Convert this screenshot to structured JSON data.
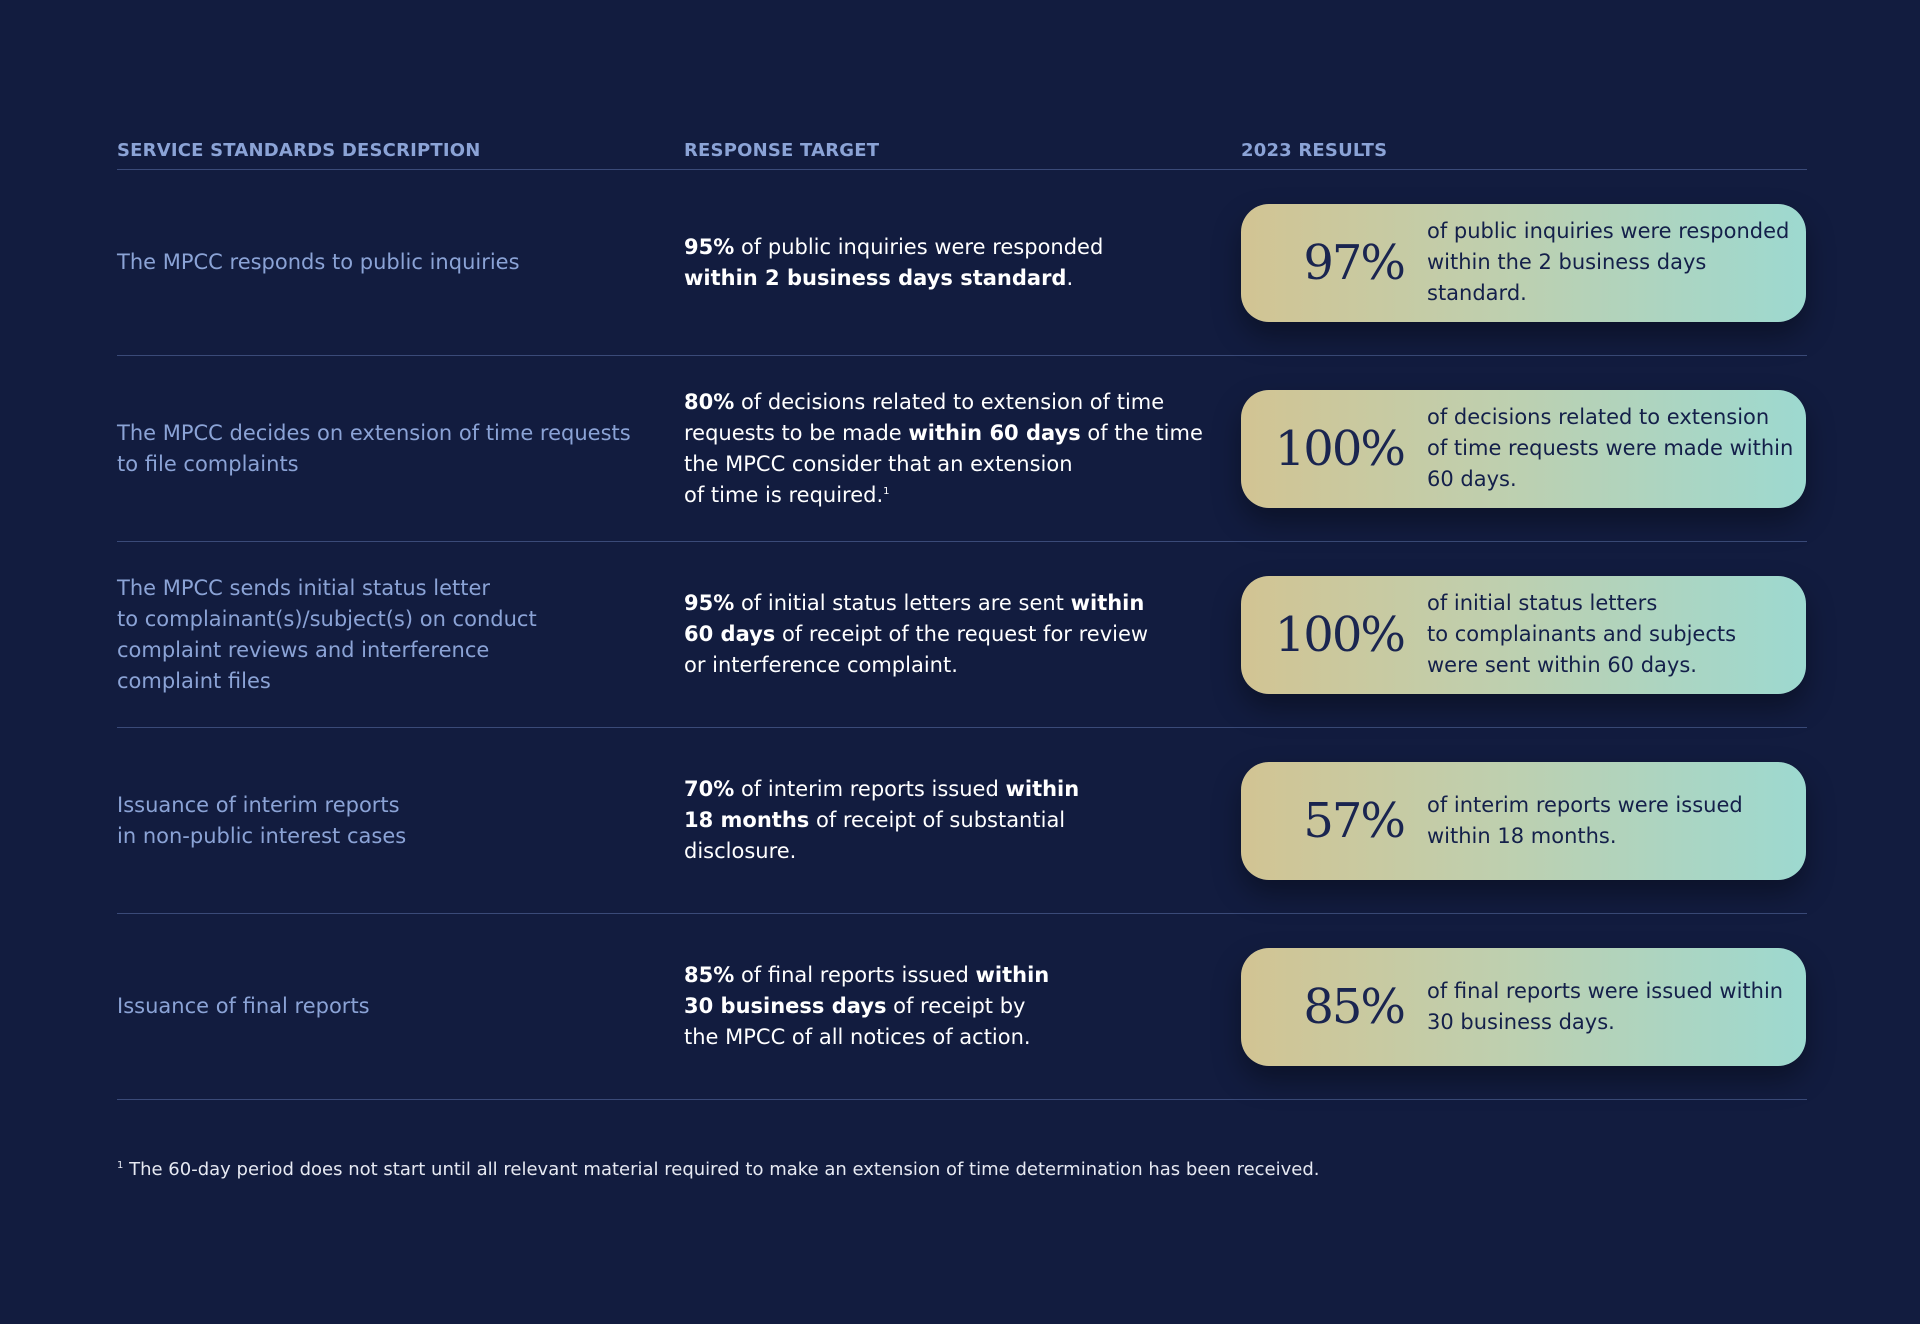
{
  "header": {
    "col_desc": "SERVICE STANDARDS DESCRIPTION",
    "col_target": "RESPONSE TARGET",
    "col_result": "2023 RESULTS"
  },
  "rows": [
    {
      "desc": "The MPCC responds to public inquiries",
      "target": {
        "a": "95%",
        "b": " of public inquiries were responded\n",
        "c": "within 2 business days standard",
        "d": "."
      },
      "result_pct": "97%",
      "result_text": "of public inquiries were responded\nwithin the 2 business days standard."
    },
    {
      "desc": "The MPCC decides on extension of time requests\nto file complaints",
      "target": {
        "a": "80%",
        "b": " of decisions related to extension of time\nrequests to be made ",
        "c": "within 60 days",
        "d": " of the time\nthe MPCC consider that an extension\nof time is required.",
        "sup": "1"
      },
      "result_pct": "100%",
      "result_text": "of decisions related to extension\nof time requests were made within\n60 days."
    },
    {
      "desc": "The MPCC sends initial status letter\nto complainant(s)/subject(s) on conduct\ncomplaint reviews and interference\ncomplaint files",
      "target": {
        "a": "95%",
        "b": " of initial status letters are sent ",
        "c": "within\n60 days",
        "d": " of receipt of the request for review\nor interference complaint."
      },
      "result_pct": "100%",
      "result_text": "of initial status letters\nto complainants and subjects\nwere sent within 60 days."
    },
    {
      "desc": "Issuance of interim reports\nin non-public interest cases",
      "target": {
        "a": "70%",
        "b": " of interim reports issued ",
        "c": "within\n18 months",
        "d": " of receipt of substantial\ndisclosure."
      },
      "result_pct": "57%",
      "result_text": "of interim reports were issued\nwithin 18 months."
    },
    {
      "desc": "Issuance of final reports",
      "target": {
        "a": "85%",
        "b": " of final reports issued ",
        "c": "within\n30 business days",
        "d": " of receipt by\nthe MPCC of all notices of action."
      },
      "result_pct": "85%",
      "result_text": "of final reports were issued within\n30 business days."
    }
  ],
  "footnote": {
    "marker": "1",
    "text": " The 60-day period does not start until all relevant material required to make an extension of time determination has been received."
  }
}
